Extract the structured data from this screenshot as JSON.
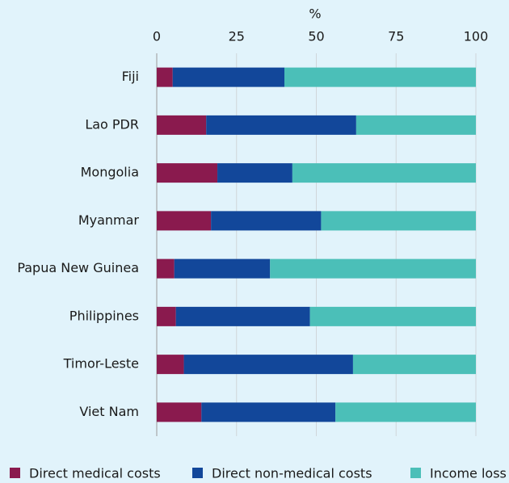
{
  "chart_data": {
    "type": "bar",
    "orientation": "horizontal",
    "stacked": true,
    "xlabel": "%",
    "categories": [
      "Fiji",
      "Lao PDR",
      "Mongolia",
      "Myanmar",
      "Papua New Guinea",
      "Philippines",
      "Timor-Leste",
      "Viet Nam"
    ],
    "series": [
      {
        "name": "Direct medical costs",
        "color": "#8a1a4e",
        "values": [
          5,
          15.5,
          19,
          17,
          5.5,
          6,
          8.5,
          14
        ]
      },
      {
        "name": "Direct non-medical costs",
        "color": "#12479a",
        "values": [
          35,
          47,
          23.5,
          34.5,
          30,
          42,
          53,
          42
        ]
      },
      {
        "name": "Income loss",
        "color": "#4bbfb8",
        "values": [
          60,
          37.5,
          57.5,
          48.5,
          64.5,
          52,
          38.5,
          44
        ]
      }
    ],
    "xlim": [
      0,
      100
    ],
    "xticks": [
      0,
      25,
      50,
      75,
      100
    ],
    "grid": true,
    "legend": "bottom"
  }
}
